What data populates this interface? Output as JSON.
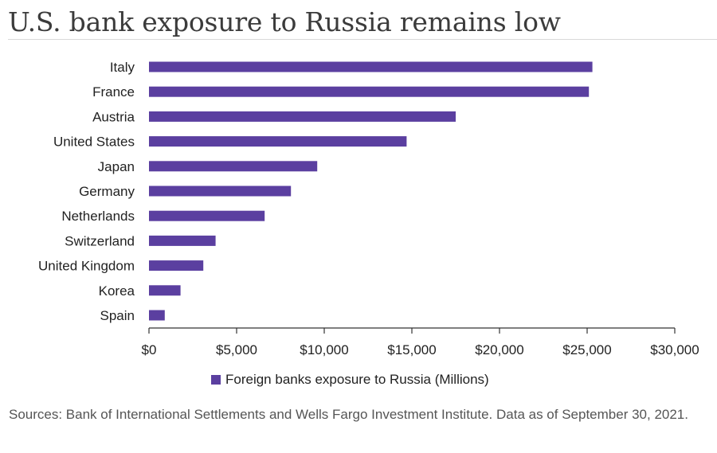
{
  "title": "U.S. bank exposure to Russia remains low",
  "chart_data": {
    "type": "bar",
    "orientation": "horizontal",
    "categories": [
      "Italy",
      "France",
      "Austria",
      "United States",
      "Japan",
      "Germany",
      "Netherlands",
      "Switzerland",
      "United Kingdom",
      "Korea",
      "Spain"
    ],
    "series": [
      {
        "name": "Foreign banks exposure to Russia (Millions)",
        "values": [
          25300,
          25100,
          17500,
          14700,
          9600,
          8100,
          6600,
          3800,
          3100,
          1800,
          900
        ],
        "color": "#5b3fa0"
      }
    ],
    "xlim": [
      0,
      30000
    ],
    "xticks": [
      0,
      5000,
      10000,
      15000,
      20000,
      25000,
      30000
    ],
    "xtick_labels": [
      "$0",
      "$5,000",
      "$10,000",
      "$15,000",
      "$20,000",
      "$25,000",
      "$30,000"
    ],
    "grid": false,
    "legend_position": "bottom"
  },
  "source": "Sources: Bank of International Settlements and Wells Fargo Investment Institute. Data as of September 30, 2021."
}
